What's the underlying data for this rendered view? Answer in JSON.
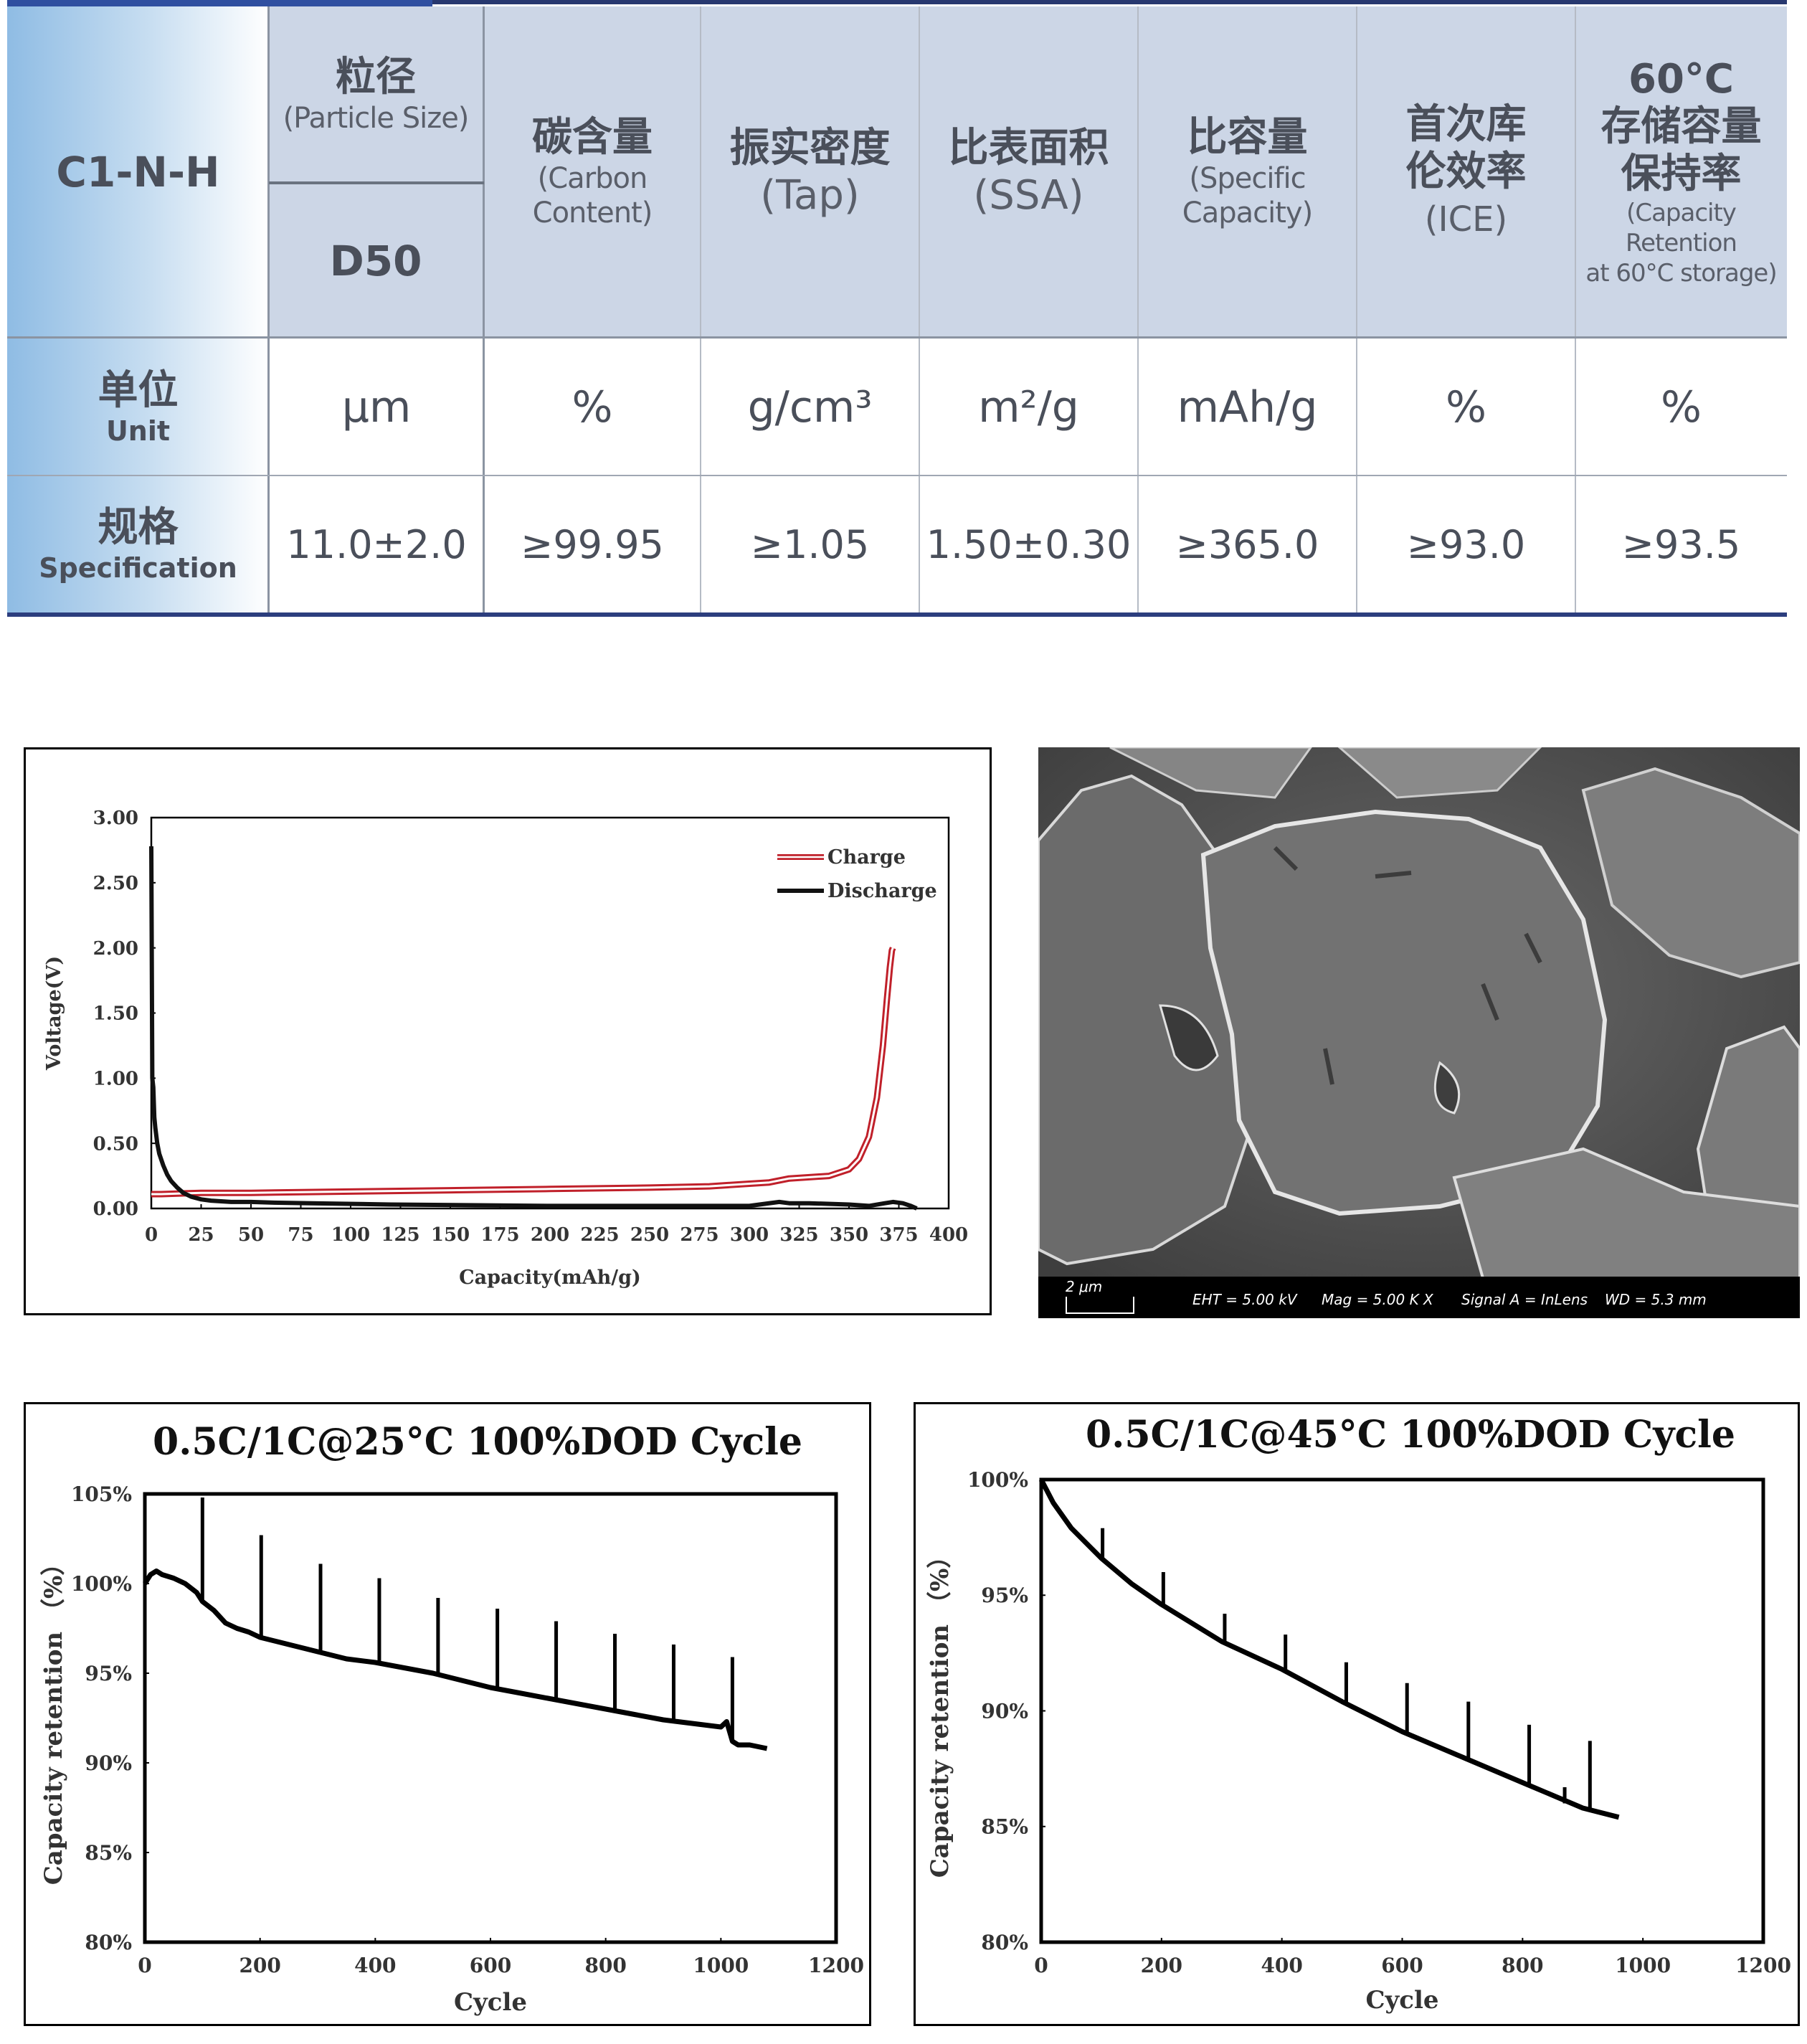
{
  "spec_table": {
    "corner_label": "C1-N-H",
    "columns": [
      {
        "cn": "粒径",
        "en": "(Particle Size)",
        "sub": "D50"
      },
      {
        "cn": "碳含量",
        "en1": "(Carbon",
        "en2": "Content)"
      },
      {
        "cn": "振实密度",
        "en": "(Tap)"
      },
      {
        "cn": "比表面积",
        "en": "(SSA)"
      },
      {
        "cn": "比容量",
        "en1": "(Specific",
        "en2": "Capacity)"
      },
      {
        "cn1": "首次库",
        "cn2": "伦效率",
        "en": "(ICE)"
      },
      {
        "cn0": "60°C",
        "cn1": "存储容量",
        "cn2": "保持率",
        "en1": "(Capacity Retention",
        "en2": "at 60°C storage)"
      }
    ],
    "unit_row": {
      "cn": "单位",
      "en": "Unit",
      "values": [
        "μm",
        "%",
        "g/cm³",
        "m²/g",
        "mAh/g",
        "%",
        "%"
      ]
    },
    "spec_row": {
      "cn": "规格",
      "en": "Specification",
      "values": [
        "11.0±2.0",
        "≥99.95",
        "≥1.05",
        "1.50±0.30",
        "≥365.0",
        "≥93.0",
        "≥93.5"
      ]
    }
  },
  "sem": {
    "scale_bar": "2 μm",
    "eht": "EHT =  5.00 kV",
    "mag": "Mag =    5.00 K X",
    "signal": "Signal A = InLens",
    "wd": "WD =  5.3 mm"
  },
  "chart_data": [
    {
      "type": "line",
      "title": "",
      "xlabel": "Capacity(mAh/g)",
      "ylabel": "Voltage(V)",
      "xlim": [
        0,
        400
      ],
      "ylim": [
        0,
        3.0
      ],
      "xticks": [
        "0",
        "25",
        "50",
        "75",
        "100",
        "125",
        "150",
        "175",
        "200",
        "225",
        "250",
        "275",
        "300",
        "325",
        "350",
        "375",
        "400"
      ],
      "yticks": [
        "0.00",
        "0.50",
        "1.00",
        "1.50",
        "2.00",
        "2.50",
        "3.00"
      ],
      "legend_position": "top-right",
      "series": [
        {
          "name": "Charge",
          "color": "#c0202a",
          "x": [
            0,
            5,
            25,
            50,
            100,
            150,
            200,
            250,
            280,
            300,
            310,
            320,
            340,
            350,
            355,
            360,
            364,
            367,
            369,
            370.5,
            371.5,
            372
          ],
          "y": [
            0.11,
            0.11,
            0.12,
            0.12,
            0.13,
            0.14,
            0.15,
            0.16,
            0.17,
            0.19,
            0.2,
            0.23,
            0.25,
            0.3,
            0.38,
            0.55,
            0.85,
            1.25,
            1.6,
            1.85,
            1.98,
            2.0
          ]
        },
        {
          "name": "Discharge",
          "color": "#111111",
          "x": [
            0,
            0.5,
            1,
            1.5,
            2,
            3,
            4,
            6,
            8,
            10,
            13,
            16,
            20,
            25,
            30,
            40,
            50,
            60,
            80,
            120,
            200,
            250,
            300,
            315,
            320,
            330,
            350,
            360,
            368,
            372,
            377,
            381,
            384
          ],
          "y": [
            2.78,
            1.0,
            0.93,
            0.7,
            0.62,
            0.5,
            0.42,
            0.33,
            0.26,
            0.21,
            0.16,
            0.12,
            0.09,
            0.07,
            0.06,
            0.05,
            0.05,
            0.045,
            0.04,
            0.03,
            0.02,
            0.02,
            0.02,
            0.05,
            0.04,
            0.04,
            0.03,
            0.02,
            0.04,
            0.05,
            0.04,
            0.02,
            0.0
          ]
        }
      ]
    },
    {
      "type": "line",
      "title": "0.5C/1C@25°C 100%DOD Cycle",
      "xlabel": "Cycle",
      "ylabel": "Capacity  retention  （%）",
      "xlim": [
        0,
        1200
      ],
      "ylim": [
        80,
        105
      ],
      "xticks": [
        "0",
        "200",
        "400",
        "600",
        "800",
        "1000",
        "1200"
      ],
      "yticks": [
        "80%",
        "85%",
        "90%",
        "95%",
        "100%",
        "105%"
      ],
      "series": [
        {
          "name": "",
          "color": "#000000",
          "x": [
            0,
            10,
            20,
            30,
            50,
            70,
            90,
            100,
            120,
            140,
            160,
            180,
            200,
            250,
            300,
            350,
            400,
            450,
            500,
            550,
            600,
            650,
            700,
            750,
            800,
            850,
            900,
            950,
            1000,
            1010,
            1020,
            1030,
            1050,
            1080
          ],
          "y": [
            100.0,
            100.5,
            100.7,
            100.5,
            100.3,
            100.0,
            99.5,
            99.0,
            98.5,
            97.8,
            97.5,
            97.3,
            97.0,
            96.6,
            96.2,
            95.8,
            95.6,
            95.3,
            95.0,
            94.6,
            94.2,
            93.9,
            93.6,
            93.3,
            93.0,
            92.7,
            92.4,
            92.2,
            92.0,
            92.3,
            91.2,
            91.0,
            91.0,
            90.8
          ]
        },
        {
          "name": "",
          "color": "#000000",
          "spike_x": [
            100,
            202,
            305,
            407,
            509,
            612,
            714,
            816,
            918,
            1020
          ],
          "spike_top": [
            104.8,
            102.7,
            101.1,
            100.3,
            99.2,
            98.6,
            97.9,
            97.2,
            96.6,
            95.9
          ]
        }
      ]
    },
    {
      "type": "line",
      "title": "0.5C/1C@45°C 100%DOD Cycle",
      "xlabel": "Cycle",
      "ylabel": "Capacity  retention （%）",
      "xlim": [
        0,
        1200
      ],
      "ylim": [
        80,
        100
      ],
      "xticks": [
        "0",
        "200",
        "400",
        "600",
        "800",
        "1000",
        "1200"
      ],
      "yticks": [
        "80%",
        "85%",
        "90%",
        "95%",
        "100%"
      ],
      "series": [
        {
          "name": "",
          "color": "#000000",
          "x": [
            0,
            20,
            50,
            100,
            150,
            200,
            300,
            400,
            500,
            600,
            700,
            800,
            900,
            960
          ],
          "y": [
            100.0,
            99.0,
            97.9,
            96.6,
            95.5,
            94.6,
            93.0,
            91.8,
            90.4,
            89.1,
            88.0,
            86.9,
            85.8,
            85.4
          ]
        },
        {
          "name": "",
          "color": "#000000",
          "spike_x": [
            102,
            203,
            305,
            406,
            507,
            608,
            710,
            811,
            912
          ],
          "spike_top": [
            97.9,
            96.0,
            94.2,
            93.3,
            92.1,
            91.2,
            90.4,
            89.4,
            88.7
          ],
          "dip": {
            "x": 870,
            "y": 86.0
          }
        }
      ]
    }
  ]
}
